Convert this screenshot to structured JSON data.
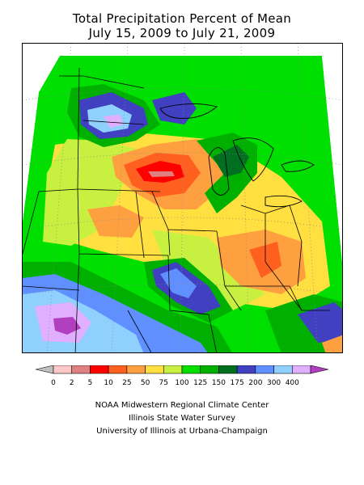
{
  "title": {
    "line1": "Total Precipitation Percent of Mean",
    "line2": "July 15, 2009 to July 21, 2009"
  },
  "legend": {
    "bins": [
      {
        "color": "#c0c0c0"
      },
      {
        "label": "0",
        "color": "#ffc8c8"
      },
      {
        "label": "2",
        "color": "#e08080"
      },
      {
        "label": "5",
        "color": "#ff0000"
      },
      {
        "label": "10",
        "color": "#ff6020"
      },
      {
        "label": "25",
        "color": "#ffa040"
      },
      {
        "label": "50",
        "color": "#ffe040"
      },
      {
        "label": "75",
        "color": "#c8f040"
      },
      {
        "label": "100",
        "color": "#00e000"
      },
      {
        "label": "125",
        "color": "#00b000"
      },
      {
        "label": "150",
        "color": "#007020"
      },
      {
        "label": "175",
        "color": "#4040c0"
      },
      {
        "label": "200",
        "color": "#6090ff"
      },
      {
        "label": "300",
        "color": "#90d0ff"
      },
      {
        "label": "400",
        "color": "#e0b0ff"
      },
      {
        "color": "#b040c0"
      }
    ]
  },
  "credits": {
    "line1": "NOAA Midwestern Regional Climate Center",
    "line2": "Illinois State Water Survey",
    "line3": "University of Illinois at Urbana-Champaign"
  }
}
